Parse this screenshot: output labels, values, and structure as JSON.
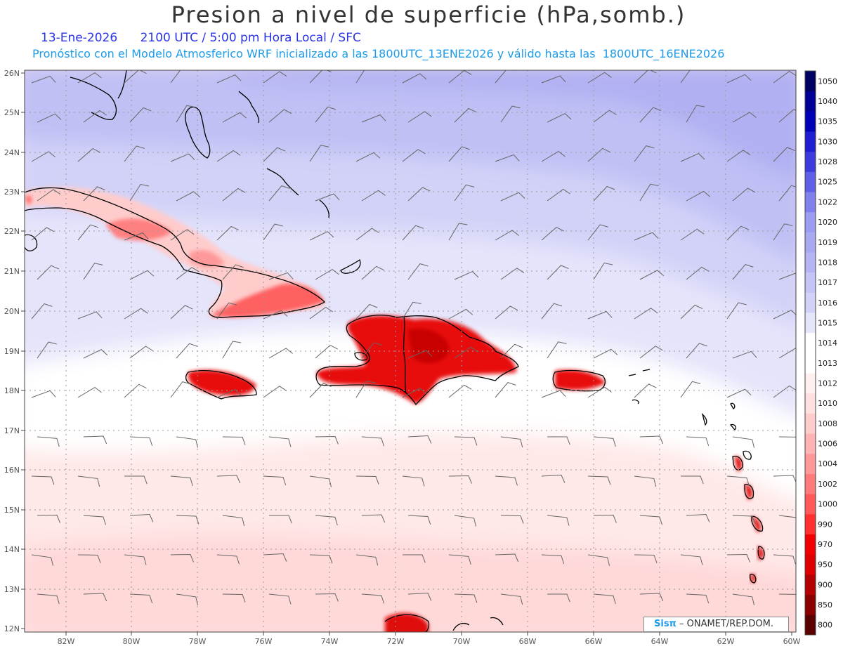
{
  "title": "Presion a nivel de superficie (hPa,somb.)",
  "subtitle_date": "13-Ene-2026",
  "subtitle_time": "2100 UTC / 5:00 pm Hora Local / SFC",
  "subtitle_model": "Pronóstico con el Modelo Atmosferico WRF inicializado a las 1800UTC_13ENE2026 y válido hasta las  1800UTC_16ENE2026",
  "credit_brand": "Sisπ",
  "credit_org": "– ONAMET/REP.DOM.",
  "lat_labels": [
    "26N",
    "25N",
    "24N",
    "23N",
    "22N",
    "21N",
    "20N",
    "19N",
    "18N",
    "17N",
    "16N",
    "15N",
    "14N",
    "13N",
    "12N"
  ],
  "lon_labels": [
    "82W",
    "80W",
    "78W",
    "76W",
    "74W",
    "72W",
    "70W",
    "68W",
    "66W",
    "64W",
    "62W",
    "60W"
  ],
  "colorbar": [
    {
      "label": "800",
      "color": "#5a0000"
    },
    {
      "label": "850",
      "color": "#8a0000"
    },
    {
      "label": "900",
      "color": "#b30000"
    },
    {
      "label": "950",
      "color": "#dd0000"
    },
    {
      "label": "970",
      "color": "#f00000"
    },
    {
      "label": "990",
      "color": "#ff3030"
    },
    {
      "label": "1000",
      "color": "#ff5a5a"
    },
    {
      "label": "1002",
      "color": "#ff7a7a"
    },
    {
      "label": "1004",
      "color": "#ff9999"
    },
    {
      "label": "1006",
      "color": "#ffb3b3"
    },
    {
      "label": "1008",
      "color": "#ffcccc"
    },
    {
      "label": "1010",
      "color": "#ffe0e0"
    },
    {
      "label": "1012",
      "color": "#fff0f0"
    },
    {
      "label": "1013",
      "color": "#ffffff"
    },
    {
      "label": "1014",
      "color": "#ffffff"
    },
    {
      "label": "1015",
      "color": "#e6e6fb"
    },
    {
      "label": "1016",
      "color": "#d2d2f8"
    },
    {
      "label": "1017",
      "color": "#c4c4f6"
    },
    {
      "label": "1018",
      "color": "#b5b5f4"
    },
    {
      "label": "1019",
      "color": "#a9a9f2"
    },
    {
      "label": "1020",
      "color": "#9c9cf0"
    },
    {
      "label": "1022",
      "color": "#8080ec"
    },
    {
      "label": "1025",
      "color": "#5e5ee6"
    },
    {
      "label": "1028",
      "color": "#3c3cdc"
    },
    {
      "label": "1030",
      "color": "#1e1ed0"
    },
    {
      "label": "1035",
      "color": "#0000b4"
    },
    {
      "label": "1040",
      "color": "#000096"
    },
    {
      "label": "1050",
      "color": "#000060"
    }
  ],
  "colors": {
    "high_pressure": "#b3b3f4",
    "mid_pressure": "#d6d6f9",
    "low_pressure": "#ffe6e6",
    "land_low": "#e00000",
    "coastline": "#000000",
    "grid": "#999999",
    "wind_barb": "#666666"
  },
  "icon_wind": "wind-barb-icon"
}
